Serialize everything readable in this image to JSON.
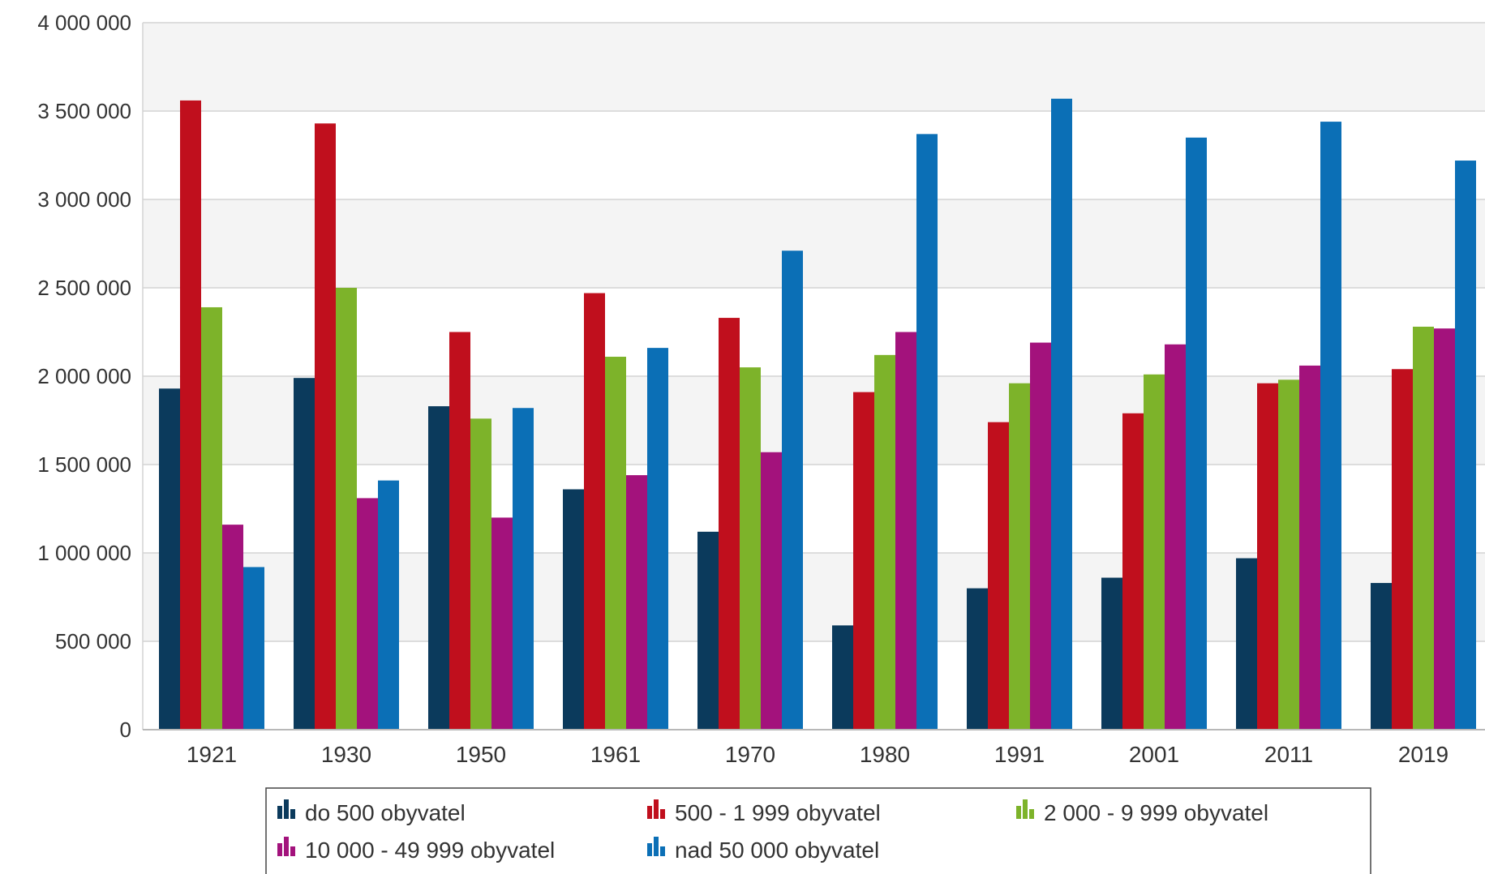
{
  "chart_data": {
    "type": "bar",
    "title": "",
    "xlabel": "",
    "ylabel": "",
    "categories": [
      "1921",
      "1930",
      "1950",
      "1961",
      "1970",
      "1980",
      "1991",
      "2001",
      "2011",
      "2019"
    ],
    "ylim": [
      0,
      4000000
    ],
    "yticks": [
      0,
      500000,
      1000000,
      1500000,
      2000000,
      2500000,
      3000000,
      3500000,
      4000000
    ],
    "ytick_labels": [
      "0",
      "500 000",
      "1 000 000",
      "1 500 000",
      "2 000 000",
      "2 500 000",
      "3 000 000",
      "3 500 000",
      "4 000 000"
    ],
    "grid": true,
    "legend_position": "bottom",
    "series": [
      {
        "name": "do 500 obyvatel",
        "color": "#0b3a5c",
        "values": [
          1930000,
          1990000,
          1830000,
          1360000,
          1120000,
          590000,
          800000,
          860000,
          970000,
          830000
        ]
      },
      {
        "name": "500 - 1 999 obyvatel",
        "color": "#c00f1d",
        "values": [
          3560000,
          3430000,
          2250000,
          2470000,
          2330000,
          1910000,
          1740000,
          1790000,
          1960000,
          2040000
        ]
      },
      {
        "name": "2 000 - 9 999 obyvatel",
        "color": "#7db32a",
        "values": [
          2390000,
          2500000,
          1760000,
          2110000,
          2050000,
          2120000,
          1960000,
          2010000,
          1980000,
          2280000
        ]
      },
      {
        "name": "10 000 - 49 999 obyvatel",
        "color": "#a3127c",
        "values": [
          1160000,
          1310000,
          1200000,
          1440000,
          1570000,
          2250000,
          2190000,
          2180000,
          2060000,
          2270000
        ]
      },
      {
        "name": "nad 50 000 obyvatel",
        "color": "#0b6fb6",
        "values": [
          920000,
          1410000,
          1820000,
          2160000,
          2710000,
          3370000,
          3570000,
          3350000,
          3440000,
          3220000
        ]
      }
    ]
  }
}
